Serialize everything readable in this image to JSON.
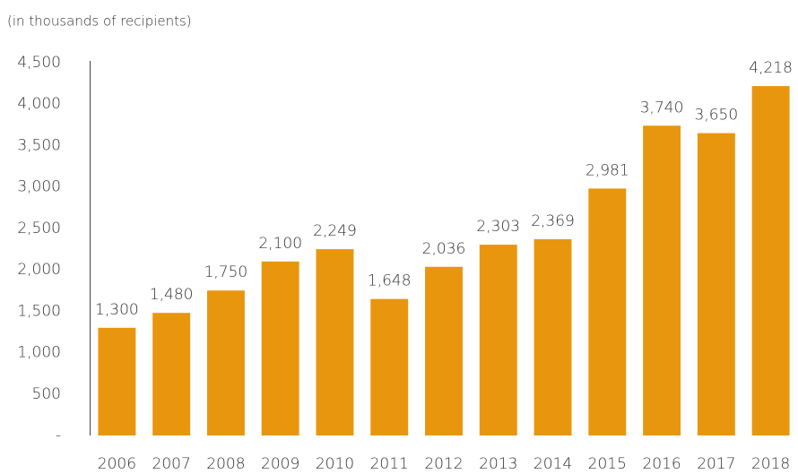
{
  "chart_data": {
    "type": "bar",
    "subtitle": "(in thousands of recipients)",
    "categories": [
      "2006",
      "2007",
      "2008",
      "2009",
      "2010",
      "2011",
      "2012",
      "2013",
      "2014",
      "2015",
      "2016",
      "2017",
      "2018"
    ],
    "values": [
      1300,
      1480,
      1750,
      2100,
      2249,
      1648,
      2036,
      2303,
      2369,
      2981,
      3740,
      3650,
      4218
    ],
    "value_labels": [
      "1,300",
      "1,480",
      "1,750",
      "2,100",
      "2,249",
      "1,648",
      "2,036",
      "2,303",
      "2,369",
      "2,981",
      "3,740",
      "3,650",
      "4,218"
    ],
    "color": "#e9960f",
    "ylim": [
      0,
      4500
    ],
    "yticks": [
      {
        "value": 0,
        "label": "-"
      },
      500,
      {
        "value": 1000,
        "label": "1,000"
      },
      {
        "value": 1500,
        "label": "1,500"
      },
      {
        "value": 2000,
        "label": "2,000"
      },
      {
        "value": 2500,
        "label": "2,500"
      },
      {
        "value": 3000,
        "label": "3,000"
      },
      {
        "value": 3500,
        "label": "3,500"
      },
      {
        "value": 4000,
        "label": "4,000"
      },
      {
        "value": 4500,
        "label": "4,500"
      }
    ],
    "grid": false
  }
}
